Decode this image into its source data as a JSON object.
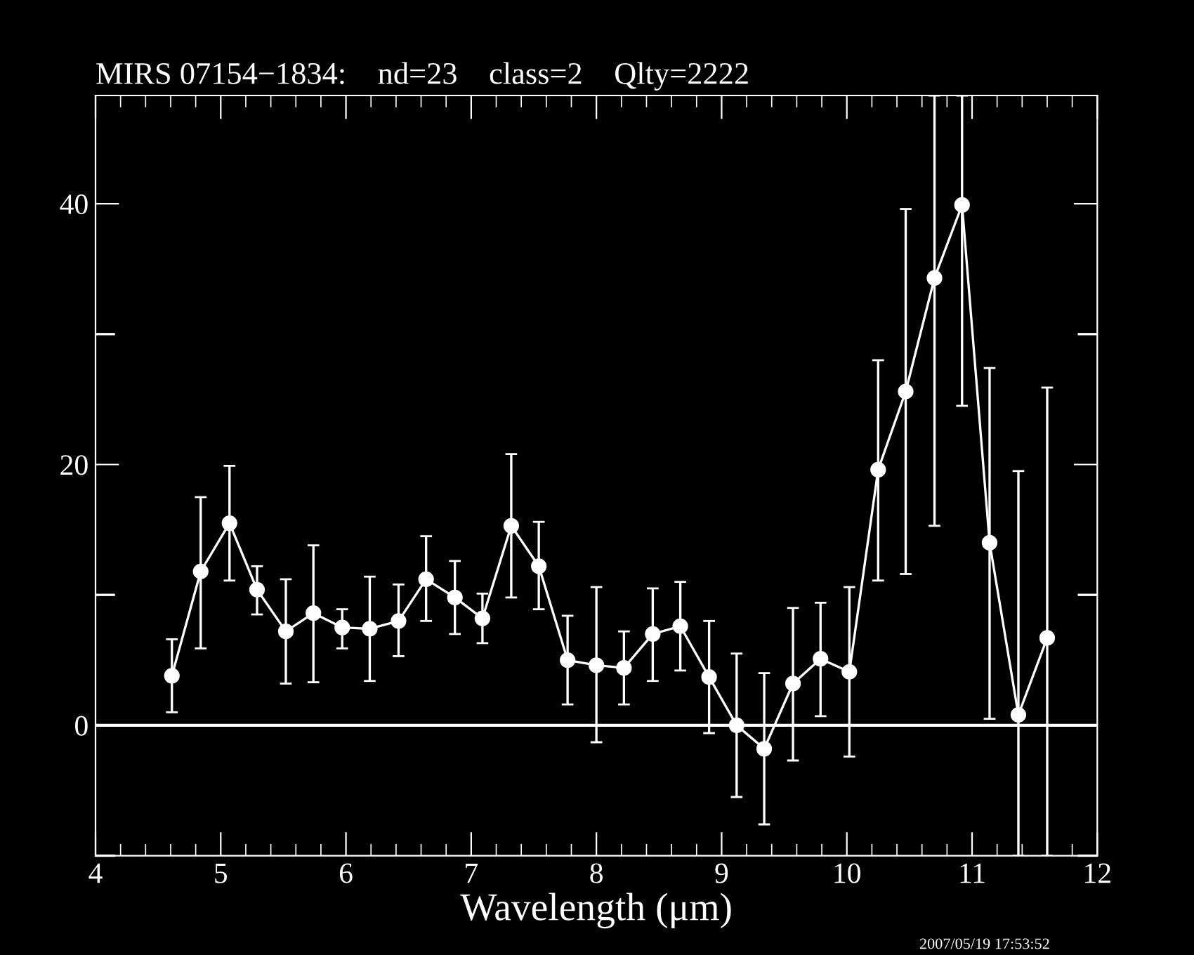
{
  "chart_data": {
    "type": "line",
    "title": "MIRS 07154−1834:    nd=23    class=2    Qlty=2222",
    "xlabel": "Wavelength (μm)",
    "annotations": [
      "2007/05/19 17:53:52"
    ],
    "x": [
      4.61,
      4.84,
      5.07,
      5.29,
      5.52,
      5.74,
      5.97,
      6.19,
      6.42,
      6.64,
      6.87,
      7.09,
      7.32,
      7.54,
      7.77,
      8.0,
      8.22,
      8.45,
      8.67,
      8.9,
      9.12,
      9.34,
      9.57,
      9.79,
      10.02,
      10.25,
      10.47,
      10.7,
      10.92,
      11.14,
      11.37,
      11.6
    ],
    "series": [
      {
        "color": "#ffffff",
        "values": [
          3.8,
          11.8,
          15.5,
          10.4,
          7.2,
          8.6,
          7.5,
          7.4,
          8.0,
          11.2,
          9.8,
          8.2,
          15.3,
          12.2,
          5.0,
          4.6,
          4.4,
          7.0,
          7.6,
          3.7,
          0.0,
          -1.8,
          3.2,
          5.1,
          4.1,
          19.6,
          25.6,
          34.3,
          39.9,
          14.0,
          0.8,
          6.7
        ],
        "errors": [
          [
            1.0,
            6.6
          ],
          [
            5.9,
            17.5
          ],
          [
            11.1,
            19.9
          ],
          [
            8.5,
            12.2
          ],
          [
            3.2,
            11.2
          ],
          [
            3.3,
            13.8
          ],
          [
            5.9,
            8.9
          ],
          [
            3.4,
            11.4
          ],
          [
            5.3,
            10.8
          ],
          [
            8.0,
            14.5
          ],
          [
            7.0,
            12.6
          ],
          [
            6.3,
            10.1
          ],
          [
            9.8,
            20.8
          ],
          [
            8.9,
            15.6
          ],
          [
            1.6,
            8.4
          ],
          [
            -1.3,
            10.6
          ],
          [
            1.6,
            7.2
          ],
          [
            3.4,
            10.5
          ],
          [
            4.2,
            11.0
          ],
          [
            -0.6,
            8.0
          ],
          [
            -5.5,
            5.5
          ],
          [
            -7.6,
            4.0
          ],
          [
            -2.7,
            9.0
          ],
          [
            0.7,
            9.4
          ],
          [
            -2.4,
            10.6
          ],
          [
            11.1,
            28.0
          ],
          [
            11.6,
            39.6
          ],
          [
            15.3,
            48.3
          ],
          [
            24.5,
            48.3
          ],
          [
            0.5,
            27.4
          ],
          [
            -10,
            19.5
          ],
          [
            -10,
            25.9
          ]
        ]
      }
    ],
    "xlim": [
      4,
      12
    ],
    "ylim": [
      -10,
      48.3
    ],
    "xticks": [
      4,
      {
        "value": 4.2,
        "label": null
      },
      {
        "value": 4.4,
        "label": null
      },
      {
        "value": 4.6,
        "label": null
      },
      {
        "value": 4.8,
        "label": null
      },
      5,
      {
        "value": 5.2,
        "label": null
      },
      {
        "value": 5.4,
        "label": null
      },
      {
        "value": 5.6,
        "label": null
      },
      {
        "value": 5.8,
        "label": null
      },
      6,
      {
        "value": 6.2,
        "label": null
      },
      {
        "value": 6.4,
        "label": null
      },
      {
        "value": 6.6,
        "label": null
      },
      {
        "value": 6.8,
        "label": null
      },
      7,
      {
        "value": 7.2,
        "label": null
      },
      {
        "value": 7.4,
        "label": null
      },
      {
        "value": 7.6,
        "label": null
      },
      {
        "value": 7.8,
        "label": null
      },
      8,
      {
        "value": 8.2,
        "label": null
      },
      {
        "value": 8.4,
        "label": null
      },
      {
        "value": 8.6,
        "label": null
      },
      {
        "value": 8.8,
        "label": null
      },
      9,
      {
        "value": 9.2,
        "label": null
      },
      {
        "value": 9.4,
        "label": null
      },
      {
        "value": 9.6,
        "label": null
      },
      {
        "value": 9.8,
        "label": null
      },
      10,
      {
        "value": 10.2,
        "label": null
      },
      {
        "value": 10.4,
        "label": null
      },
      {
        "value": 10.6,
        "label": null
      },
      {
        "value": 10.8,
        "label": null
      },
      11,
      {
        "value": 11.2,
        "label": null
      },
      {
        "value": 11.4,
        "label": null
      },
      {
        "value": 11.6,
        "label": null
      },
      {
        "value": 11.8,
        "label": null
      },
      12
    ],
    "yticks": [
      {
        "value": -10,
        "label": null
      },
      0,
      {
        "value": 10,
        "label": null
      },
      20,
      {
        "value": 30,
        "label": null
      },
      40
    ],
    "ref_lines": [
      {
        "axis": "y",
        "value": 0,
        "color": "#ffffff",
        "line_style": "solid"
      }
    ],
    "marker": "circle",
    "line_style": "solid",
    "grid": false,
    "legend": false
  }
}
